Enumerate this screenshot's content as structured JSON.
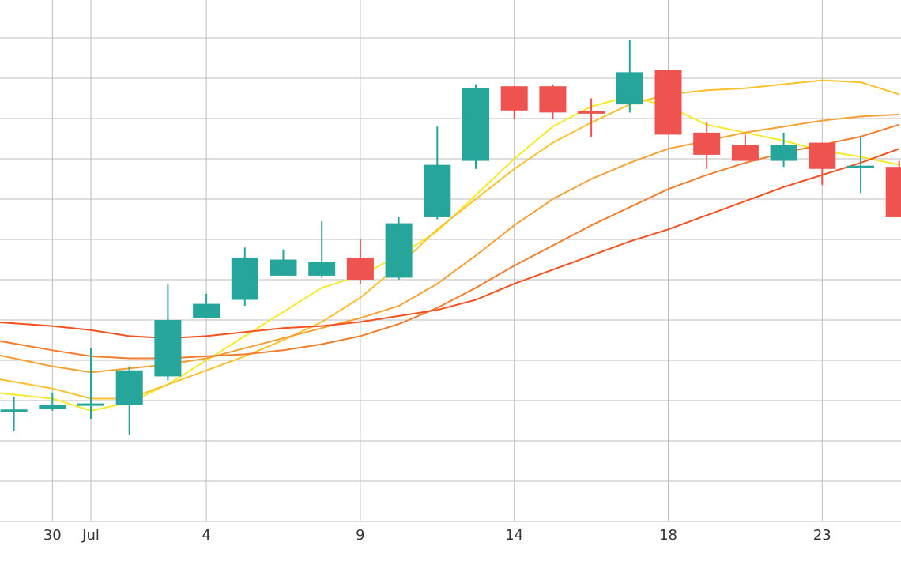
{
  "chart_data": {
    "type": "candlestick",
    "title": "",
    "xlabel": "",
    "ylabel": "",
    "grid": true,
    "x_axis": {
      "ticks": [
        {
          "label": "30",
          "x": -1
        },
        {
          "label": "Jul",
          "x": 0
        },
        {
          "label": "4",
          "x": 3
        },
        {
          "label": "9",
          "x": 7
        },
        {
          "label": "14",
          "x": 11
        },
        {
          "label": "18",
          "x": 15
        },
        {
          "label": "23",
          "x": 19
        }
      ]
    },
    "ylim": [
      0,
      13
    ],
    "y_gridlines": [
      0,
      1,
      2,
      3,
      4,
      5,
      6,
      7,
      8,
      9,
      10,
      11,
      12
    ],
    "candles": [
      {
        "x": -2.0,
        "open": 2.75,
        "close": 2.75,
        "high": 3.1,
        "low": 2.25
      },
      {
        "x": -1.0,
        "open": 2.8,
        "close": 2.9,
        "high": 3.2,
        "low": 2.75
      },
      {
        "x": 0.0,
        "open": 2.85,
        "close": 2.9,
        "high": 4.3,
        "low": 2.55
      },
      {
        "x": 1.0,
        "open": 2.9,
        "close": 3.75,
        "high": 3.85,
        "low": 2.15
      },
      {
        "x": 2.0,
        "open": 3.6,
        "close": 5.0,
        "high": 5.9,
        "low": 3.5
      },
      {
        "x": 3.0,
        "open": 5.05,
        "close": 5.4,
        "high": 5.65,
        "low": 5.05
      },
      {
        "x": 4.0,
        "open": 5.5,
        "close": 6.55,
        "high": 6.8,
        "low": 5.35
      },
      {
        "x": 5.0,
        "open": 6.1,
        "close": 6.5,
        "high": 6.75,
        "low": 6.1
      },
      {
        "x": 6.0,
        "open": 6.1,
        "close": 6.45,
        "high": 7.45,
        "low": 6.05
      },
      {
        "x": 7.0,
        "open": 6.55,
        "close": 6.0,
        "high": 7.0,
        "low": 5.9
      },
      {
        "x": 8.0,
        "open": 6.05,
        "close": 7.4,
        "high": 7.55,
        "low": 6.0
      },
      {
        "x": 9.0,
        "open": 7.55,
        "close": 8.85,
        "high": 9.8,
        "low": 7.5
      },
      {
        "x": 10.0,
        "open": 8.95,
        "close": 10.75,
        "high": 10.85,
        "low": 8.75
      },
      {
        "x": 11.0,
        "open": 10.8,
        "close": 10.2,
        "high": 10.8,
        "low": 10.0
      },
      {
        "x": 12.0,
        "open": 10.8,
        "close": 10.15,
        "high": 10.85,
        "low": 9.99
      },
      {
        "x": 13.0,
        "open": 10.15,
        "close": 10.1,
        "high": 10.5,
        "low": 9.55
      },
      {
        "x": 14.0,
        "open": 10.35,
        "close": 11.15,
        "high": 11.95,
        "low": 10.15
      },
      {
        "x": 15.0,
        "open": 11.2,
        "close": 9.6,
        "high": 11.2,
        "low": 9.6
      },
      {
        "x": 16.0,
        "open": 9.65,
        "close": 9.1,
        "high": 9.9,
        "low": 8.75
      },
      {
        "x": 17.0,
        "open": 9.35,
        "close": 8.95,
        "high": 9.6,
        "low": 8.95
      },
      {
        "x": 18.0,
        "open": 8.95,
        "close": 9.35,
        "high": 9.65,
        "low": 8.8
      },
      {
        "x": 19.0,
        "open": 9.4,
        "close": 8.75,
        "high": 9.4,
        "low": 8.35
      },
      {
        "x": 20.0,
        "open": 8.8,
        "close": 8.8,
        "high": 9.55,
        "low": 8.15
      },
      {
        "x": 21.0,
        "open": 8.8,
        "close": 7.55,
        "high": 8.95,
        "low": 7.55
      }
    ],
    "moving_averages": [
      {
        "color": "#f5ea2a",
        "points": [
          [
            -2.5,
            3.2
          ],
          [
            -1,
            3.05
          ],
          [
            0,
            2.75
          ],
          [
            1,
            2.95
          ],
          [
            2,
            3.4
          ],
          [
            3,
            4.0
          ],
          [
            4,
            4.6
          ],
          [
            5,
            5.2
          ],
          [
            6,
            5.8
          ],
          [
            7,
            6.1
          ],
          [
            8,
            6.6
          ],
          [
            9,
            7.2
          ],
          [
            10,
            8.1
          ],
          [
            11,
            9.0
          ],
          [
            12,
            9.8
          ],
          [
            13,
            10.3
          ],
          [
            14,
            10.55
          ],
          [
            15,
            10.3
          ],
          [
            16,
            9.85
          ],
          [
            17,
            9.65
          ],
          [
            18,
            9.45
          ],
          [
            19,
            9.2
          ],
          [
            20,
            9.05
          ],
          [
            21,
            8.85
          ]
        ]
      },
      {
        "color": "#fbc02d",
        "points": [
          [
            -2.5,
            3.55
          ],
          [
            -1,
            3.3
          ],
          [
            0,
            3.05
          ],
          [
            1,
            3.05
          ],
          [
            2,
            3.4
          ],
          [
            3,
            3.75
          ],
          [
            4,
            4.1
          ],
          [
            5,
            4.5
          ],
          [
            6,
            4.95
          ],
          [
            7,
            5.55
          ],
          [
            8,
            6.35
          ],
          [
            9,
            7.25
          ],
          [
            10,
            8.0
          ],
          [
            11,
            8.75
          ],
          [
            12,
            9.4
          ],
          [
            13,
            9.9
          ],
          [
            14,
            10.35
          ],
          [
            15,
            10.6
          ],
          [
            16,
            10.7
          ],
          [
            17,
            10.75
          ],
          [
            18,
            10.85
          ],
          [
            19,
            10.95
          ],
          [
            20,
            10.9
          ],
          [
            21,
            10.6
          ]
        ]
      },
      {
        "color": "#f7a033",
        "points": [
          [
            -2.5,
            4.15
          ],
          [
            -1,
            3.85
          ],
          [
            0,
            3.7
          ],
          [
            1,
            3.8
          ],
          [
            2,
            3.9
          ],
          [
            3,
            4.05
          ],
          [
            4,
            4.3
          ],
          [
            5,
            4.55
          ],
          [
            6,
            4.8
          ],
          [
            7,
            5.05
          ],
          [
            8,
            5.35
          ],
          [
            9,
            5.9
          ],
          [
            10,
            6.6
          ],
          [
            11,
            7.35
          ],
          [
            12,
            8.0
          ],
          [
            13,
            8.5
          ],
          [
            14,
            8.9
          ],
          [
            15,
            9.25
          ],
          [
            16,
            9.45
          ],
          [
            17,
            9.65
          ],
          [
            18,
            9.8
          ],
          [
            19,
            9.95
          ],
          [
            20,
            10.05
          ],
          [
            21,
            10.1
          ]
        ]
      },
      {
        "color": "#f57c2a",
        "points": [
          [
            -2.5,
            4.5
          ],
          [
            -1,
            4.25
          ],
          [
            0,
            4.1
          ],
          [
            1,
            4.05
          ],
          [
            2,
            4.05
          ],
          [
            3,
            4.1
          ],
          [
            4,
            4.15
          ],
          [
            5,
            4.25
          ],
          [
            6,
            4.4
          ],
          [
            7,
            4.6
          ],
          [
            8,
            4.9
          ],
          [
            9,
            5.3
          ],
          [
            10,
            5.8
          ],
          [
            11,
            6.35
          ],
          [
            12,
            6.85
          ],
          [
            13,
            7.35
          ],
          [
            14,
            7.8
          ],
          [
            15,
            8.25
          ],
          [
            16,
            8.6
          ],
          [
            17,
            8.9
          ],
          [
            18,
            9.15
          ],
          [
            19,
            9.35
          ],
          [
            20,
            9.55
          ],
          [
            21,
            9.85
          ]
        ]
      },
      {
        "color": "#f4511e",
        "points": [
          [
            -2.5,
            4.95
          ],
          [
            -1,
            4.85
          ],
          [
            0,
            4.75
          ],
          [
            1,
            4.6
          ],
          [
            2,
            4.55
          ],
          [
            3,
            4.6
          ],
          [
            4,
            4.7
          ],
          [
            5,
            4.8
          ],
          [
            6,
            4.85
          ],
          [
            7,
            4.95
          ],
          [
            8,
            5.1
          ],
          [
            9,
            5.25
          ],
          [
            10,
            5.5
          ],
          [
            11,
            5.9
          ],
          [
            12,
            6.25
          ],
          [
            13,
            6.6
          ],
          [
            14,
            6.95
          ],
          [
            15,
            7.25
          ],
          [
            16,
            7.6
          ],
          [
            17,
            7.95
          ],
          [
            18,
            8.3
          ],
          [
            19,
            8.6
          ],
          [
            20,
            8.9
          ],
          [
            21,
            9.25
          ]
        ]
      }
    ],
    "colors": {
      "up": "#26a69a",
      "down": "#ef5350",
      "grid": "#bdbdbd",
      "axis_text": "#333333",
      "background": "#ffffff"
    }
  }
}
